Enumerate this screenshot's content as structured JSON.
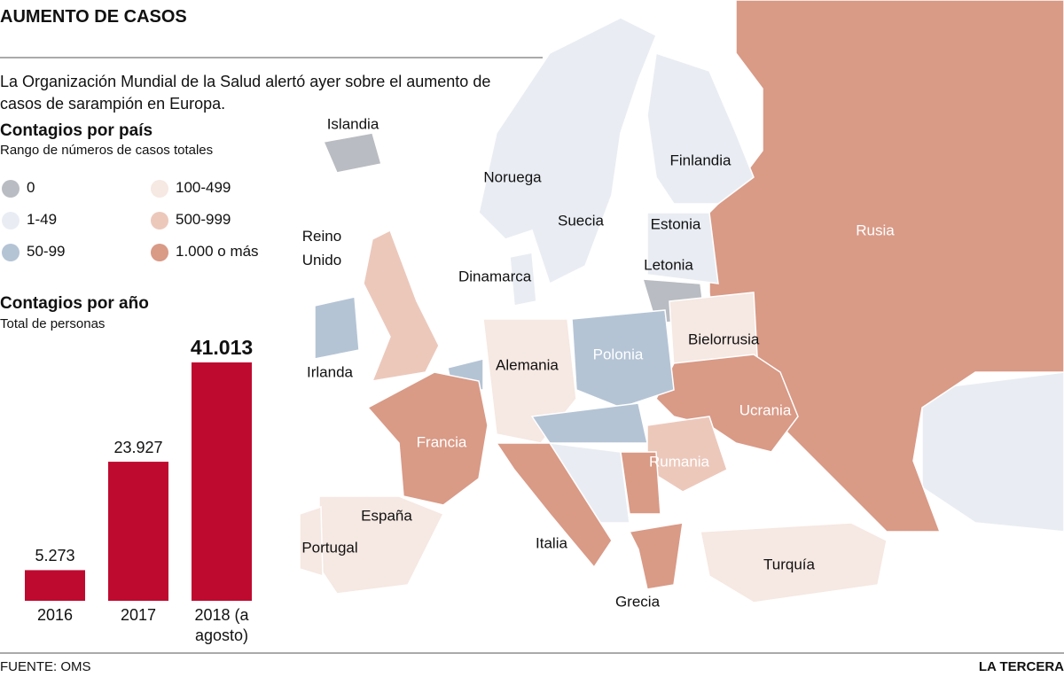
{
  "header": {
    "title": "AUMENTO DE CASOS",
    "intro": "La Organización Mundial de la Salud alertó ayer sobre el aumento de casos de sarampión en Europa."
  },
  "legend": {
    "title": "Contagios por país",
    "subtitle": "Rango de números de casos totales",
    "items": [
      {
        "label": "0",
        "color": "#b9bcc2"
      },
      {
        "label": "1-49",
        "color": "#e9edf3"
      },
      {
        "label": "50-99",
        "color": "#b4c4d5"
      },
      {
        "label": "100-499",
        "color": "#f6e8e2"
      },
      {
        "label": "500-999",
        "color": "#ecc8bb"
      },
      {
        "label": "1.000 o más",
        "color": "#d99a86"
      }
    ]
  },
  "map": {
    "labels": [
      "Islandia",
      "Noruega",
      "Finlandia",
      "Suecia",
      "Estonia",
      "Reino Unido",
      "Dinamarca",
      "Letonia",
      "Rusia",
      "Bielorrusia",
      "Polonia",
      "Alemania",
      "Irlanda",
      "Ucrania",
      "Francia",
      "Rumania",
      "España",
      "Portugal",
      "Italia",
      "Turquía",
      "Grecia"
    ]
  },
  "chart_data": {
    "type": "bar",
    "title": "Contagios por año",
    "subtitle": "Total de personas",
    "categories": [
      "2016",
      "2017",
      "2018 (a agosto)"
    ],
    "values": [
      5273,
      23927,
      41013
    ],
    "value_labels": [
      "5.273",
      "23.927",
      "41.013"
    ],
    "color": "#bf0a30"
  },
  "footer": {
    "source": "FUENTE: OMS",
    "brand": "LA TERCERA"
  }
}
